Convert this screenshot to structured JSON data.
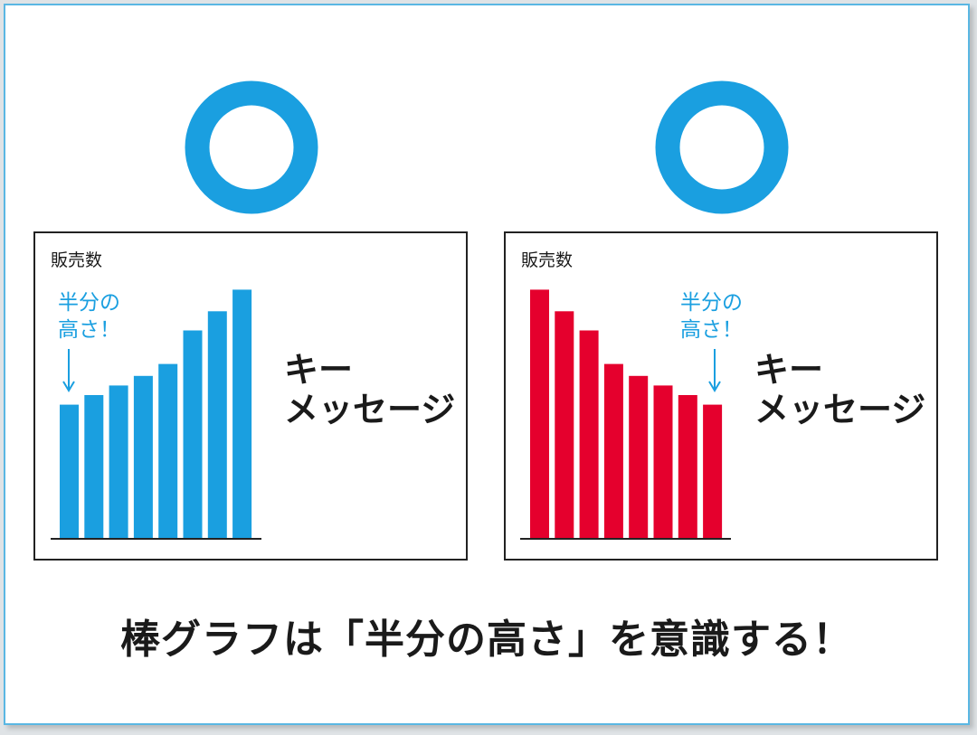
{
  "colors": {
    "accent_blue": "#1a9fe0",
    "accent_red": "#e5002d",
    "frame": "#222222",
    "text": "#1a1a1a"
  },
  "icons": [
    "double-circle-icon",
    "double-circle-icon"
  ],
  "chart_data": [
    {
      "type": "bar",
      "title": "販売数",
      "color": "#1a9fe0",
      "values": [
        56,
        60,
        64,
        68,
        73,
        87,
        95,
        104
      ],
      "annotation": {
        "lines": [
          "半分の",
          "高さ！"
        ],
        "arrow": "down"
      },
      "side_text": [
        "キー",
        "メッセージ"
      ]
    },
    {
      "type": "bar",
      "title": "販売数",
      "color": "#e5002d",
      "values": [
        104,
        95,
        87,
        73,
        68,
        64,
        60,
        56
      ],
      "annotation": {
        "lines": [
          "半分の",
          "高さ！"
        ],
        "arrow": "down"
      },
      "side_text": [
        "キー",
        "メッセージ"
      ]
    }
  ],
  "caption": "棒グラフは「半分の高さ」を意識する！"
}
